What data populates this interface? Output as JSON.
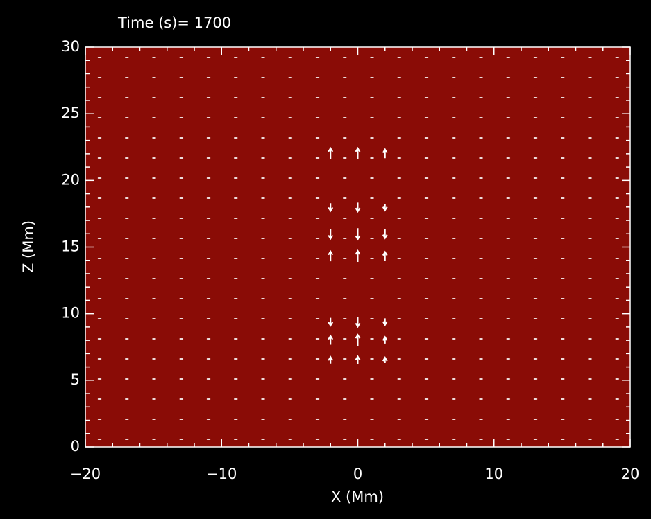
{
  "chart_data": {
    "type": "vector-field",
    "title": "Time (s)= 1700",
    "xlabel": "X (Mm)",
    "ylabel": "Z (Mm)",
    "xlim": [
      -20,
      20
    ],
    "ylim": [
      0,
      30
    ],
    "xticks": [
      {
        "value": -20,
        "label": "−20"
      },
      {
        "value": -10,
        "label": "−10"
      },
      0,
      10,
      20
    ],
    "yticks": [
      0,
      5,
      10,
      15,
      20,
      25,
      30
    ],
    "color": "#ffffff",
    "vectors": [
      {
        "x": -2,
        "z": 22,
        "vz": 1.0
      },
      {
        "x": 0,
        "z": 22,
        "vz": 1.0
      },
      {
        "x": 2,
        "z": 22,
        "vz": 0.8
      },
      {
        "x": -2,
        "z": 18,
        "vz": -0.7
      },
      {
        "x": 0,
        "z": 18,
        "vz": -0.8
      },
      {
        "x": 2,
        "z": 18,
        "vz": -0.6
      },
      {
        "x": -2,
        "z": 16,
        "vz": -0.9
      },
      {
        "x": 0,
        "z": 16,
        "vz": -1.0
      },
      {
        "x": 2,
        "z": 16,
        "vz": -0.8
      },
      {
        "x": -2,
        "z": 14.3,
        "vz": 0.9
      },
      {
        "x": 0,
        "z": 14.3,
        "vz": 1.0
      },
      {
        "x": 2,
        "z": 14.3,
        "vz": 0.8
      },
      {
        "x": -2,
        "z": 9.4,
        "vz": -0.7
      },
      {
        "x": 0,
        "z": 9.4,
        "vz": -0.9
      },
      {
        "x": 2,
        "z": 9.4,
        "vz": -0.6
      },
      {
        "x": -2,
        "z": 8,
        "vz": 0.8
      },
      {
        "x": 0,
        "z": 8,
        "vz": 1.0
      },
      {
        "x": 2,
        "z": 8,
        "vz": 0.6
      },
      {
        "x": -2,
        "z": 6.5,
        "vz": 0.6
      },
      {
        "x": 0,
        "z": 6.5,
        "vz": 0.7
      },
      {
        "x": 2,
        "z": 6.5,
        "vz": 0.5
      }
    ]
  }
}
